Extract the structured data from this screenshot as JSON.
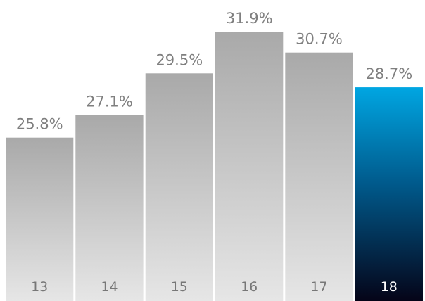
{
  "chart_data": {
    "type": "bar",
    "title": "",
    "xlabel": "",
    "ylabel": "",
    "categories": [
      "13",
      "14",
      "15",
      "16",
      "17",
      "18"
    ],
    "values": [
      25.8,
      27.1,
      29.5,
      31.9,
      30.7,
      28.7
    ],
    "value_labels": [
      "25.8%",
      "27.1%",
      "29.5%",
      "31.9%",
      "30.7%",
      "28.7%"
    ],
    "unit": "%",
    "ylim": [
      0,
      31.9
    ],
    "highlight_index": 5,
    "grid": false,
    "legend": "none",
    "colors": {
      "bar_top": "#a9a9a9",
      "bar_bottom": "#e6e6e6",
      "highlight_top": "#00a6e2",
      "highlight_bottom": "#050418"
    }
  }
}
